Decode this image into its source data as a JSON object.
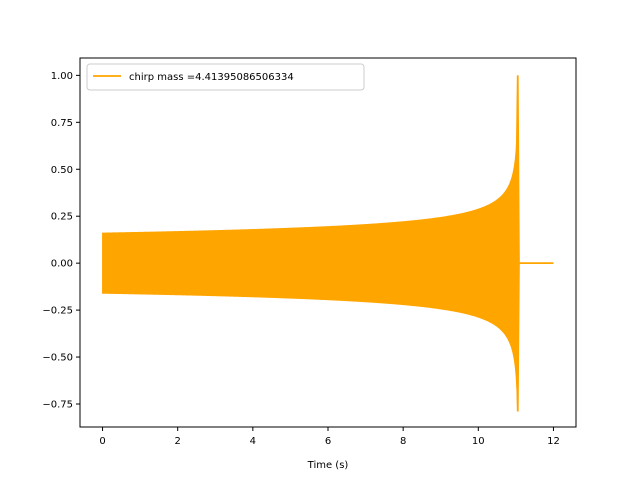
{
  "chart_data": {
    "type": "line",
    "title": "",
    "xlabel": "Time (s)",
    "ylabel": "",
    "xlim": [
      -0.6,
      12.6
    ],
    "ylim": [
      -0.8725,
      1.0925
    ],
    "x_ticks": [
      0,
      2,
      4,
      6,
      8,
      10,
      12
    ],
    "x_tick_labels": [
      "0",
      "2",
      "4",
      "6",
      "8",
      "10",
      "12"
    ],
    "y_ticks": [
      -0.75,
      -0.5,
      -0.25,
      0.0,
      0.25,
      0.5,
      0.75,
      1.0
    ],
    "y_tick_labels": [
      "−0.75",
      "−0.50",
      "−0.25",
      "0.00",
      "0.25",
      "0.50",
      "0.75",
      "1.00"
    ],
    "grid": false,
    "legend_position": "top-left",
    "series": [
      {
        "name": "chirp mass =4.41395086506334",
        "color": "#ffa500",
        "x_start": 0,
        "x_merger": 11.05,
        "x_end": 12.0,
        "initial_amplitude": 0.16,
        "peak_max": 1.0,
        "peak_min": -0.79,
        "post_merger_value": 0.0
      }
    ]
  }
}
